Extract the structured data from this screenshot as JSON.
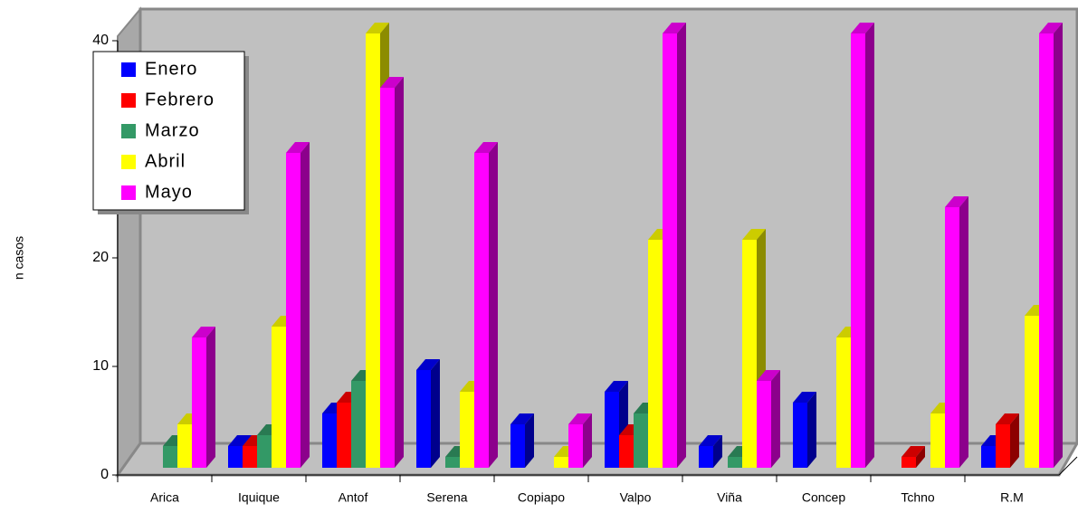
{
  "chart_data": {
    "type": "bar3d",
    "y_label": "n casos",
    "categories": [
      "Arica",
      "Iquique",
      "Antof",
      "Serena",
      "Copiapo",
      "Valpo",
      "Viña",
      "Concep",
      "Tchno",
      "R.M"
    ],
    "series": [
      {
        "name": "Enero",
        "color": "#0000ff",
        "values": [
          0,
          2,
          5,
          9,
          4,
          7,
          2,
          6,
          0,
          2
        ]
      },
      {
        "name": "Febrero",
        "color": "#ff0000",
        "values": [
          0,
          2,
          6,
          0,
          0,
          3,
          0,
          0,
          1,
          4
        ]
      },
      {
        "name": "Marzo",
        "color": "#339966",
        "values": [
          2,
          3,
          8,
          1,
          0,
          5,
          1,
          0,
          0,
          0
        ]
      },
      {
        "name": "Abril",
        "color": "#ffff00",
        "values": [
          4,
          13,
          40,
          7,
          1,
          21,
          21,
          12,
          5,
          14
        ]
      },
      {
        "name": "Mayo",
        "color": "#ff00ff",
        "values": [
          12,
          29,
          35,
          29,
          4,
          40,
          8,
          40,
          24,
          40
        ]
      }
    ],
    "ylim": [
      0,
      40
    ],
    "yticks": [
      0,
      10,
      20,
      30,
      40
    ],
    "legend": "upper-left"
  }
}
